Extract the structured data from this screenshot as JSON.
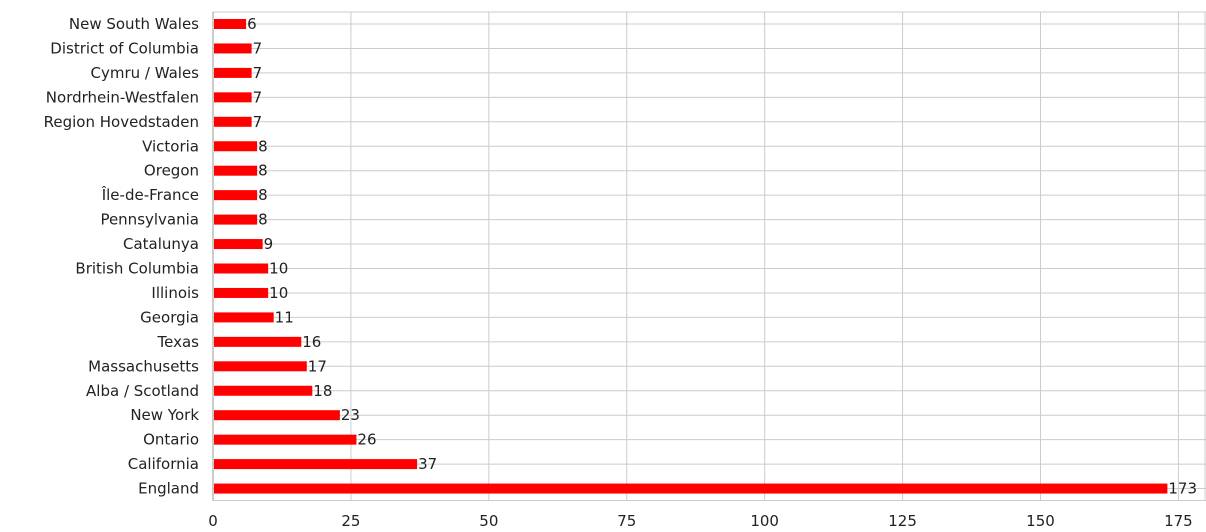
{
  "chart_data": {
    "type": "bar",
    "orientation": "horizontal",
    "title": "",
    "xlabel": "",
    "ylabel": "",
    "categories": [
      "New South Wales",
      "District of Columbia",
      "Cymru / Wales",
      "Nordrhein-Westfalen",
      "Region Hovedstaden",
      "Victoria",
      "Oregon",
      "Île-de-France",
      "Pennsylvania",
      "Catalunya",
      "British Columbia",
      "Illinois",
      "Georgia",
      "Texas",
      "Massachusetts",
      "Alba / Scotland",
      "New York",
      "Ontario",
      "California",
      "England"
    ],
    "values": [
      6,
      7,
      7,
      7,
      7,
      8,
      8,
      8,
      8,
      9,
      10,
      10,
      11,
      16,
      17,
      18,
      23,
      26,
      37,
      173
    ],
    "xlim": [
      0,
      180
    ],
    "x_ticks": [
      0,
      25,
      50,
      75,
      100,
      125,
      150,
      175
    ],
    "grid": true,
    "legend": "none",
    "bar_color": "#ff0000",
    "data_labels": true
  }
}
